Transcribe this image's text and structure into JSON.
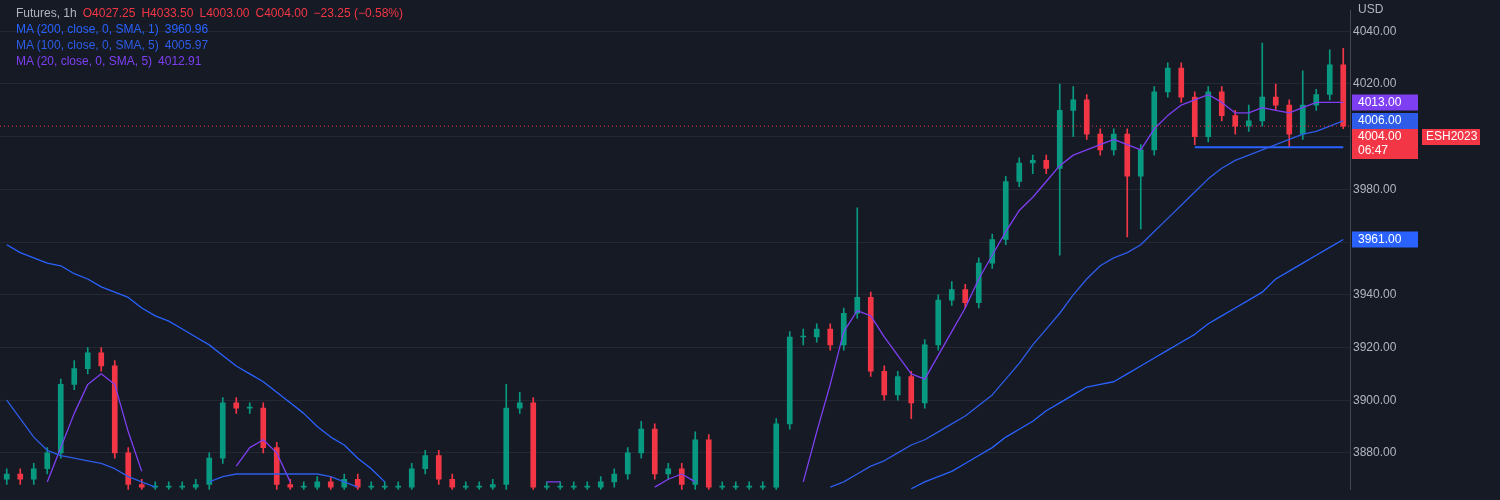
{
  "chart_data": {
    "type": "candlestick",
    "title": "Futures, 1h",
    "ylabel": "USD",
    "categories": [
      null,
      null,
      null,
      null,
      null,
      null,
      null,
      null,
      null,
      null,
      null,
      null,
      null,
      null,
      null,
      null,
      null,
      null,
      null,
      null,
      null,
      null,
      null,
      null,
      null,
      null,
      null,
      null,
      null,
      null,
      null,
      null,
      null,
      null,
      null,
      null,
      null,
      null,
      null,
      null,
      null,
      null,
      null,
      null,
      null,
      null,
      null,
      null,
      null,
      null,
      null,
      null,
      null,
      null,
      null,
      null,
      null,
      null,
      null,
      null,
      null,
      null,
      null,
      null,
      null,
      null,
      null,
      null,
      null,
      null,
      null,
      null,
      null,
      null,
      null,
      null,
      null,
      null,
      null,
      null,
      null,
      null,
      null,
      null,
      null,
      null,
      null,
      null,
      null,
      null,
      null,
      null,
      null,
      null,
      null,
      null,
      null,
      null,
      null,
      null
    ],
    "ohlc": [
      [
        3870,
        3874,
        3868,
        3872
      ],
      [
        3872,
        3874,
        3868,
        3870
      ],
      [
        3870,
        3876,
        3868,
        3874
      ],
      [
        3874,
        3882,
        3872,
        3880
      ],
      [
        3880,
        3908,
        3878,
        3906
      ],
      [
        3906,
        3915,
        3904,
        3912
      ],
      [
        3912,
        3920,
        3910,
        3918
      ],
      [
        3918,
        3920,
        3911,
        3913
      ],
      [
        3913,
        3915,
        3878,
        3880
      ],
      [
        3880,
        3882,
        3866,
        3868
      ],
      [
        3868,
        3870,
        3866,
        3867
      ],
      [
        3867,
        3869,
        3866,
        3867
      ],
      [
        3867,
        3869,
        3866,
        3867
      ],
      [
        3867,
        3869,
        3866,
        3867
      ],
      [
        3867,
        3870,
        3866,
        3868
      ],
      [
        3868,
        3880,
        3866,
        3878
      ],
      [
        3878,
        3901,
        3876,
        3899
      ],
      [
        3899,
        3901,
        3895,
        3897
      ],
      [
        3897,
        3899,
        3895,
        3897
      ],
      [
        3897,
        3899,
        3880,
        3882
      ],
      [
        3882,
        3884,
        3866,
        3868
      ],
      [
        3868,
        3870,
        3866,
        3867
      ],
      [
        3867,
        3869,
        3866,
        3867
      ],
      [
        3867,
        3871,
        3866,
        3869
      ],
      [
        3869,
        3871,
        3866,
        3867
      ],
      [
        3867,
        3872,
        3866,
        3870
      ],
      [
        3870,
        3872,
        3866,
        3867
      ],
      [
        3867,
        3869,
        3866,
        3867
      ],
      [
        3867,
        3869,
        3866,
        3867
      ],
      [
        3867,
        3869,
        3866,
        3867
      ],
      [
        3867,
        3876,
        3866,
        3874
      ],
      [
        3874,
        3881,
        3872,
        3879
      ],
      [
        3879,
        3881,
        3868,
        3870
      ],
      [
        3870,
        3872,
        3866,
        3867
      ],
      [
        3867,
        3869,
        3866,
        3867
      ],
      [
        3867,
        3869,
        3866,
        3867
      ],
      [
        3867,
        3870,
        3866,
        3868
      ],
      [
        3868,
        3906,
        3866,
        3897
      ],
      [
        3897,
        3903,
        3895,
        3899
      ],
      [
        3899,
        3901,
        3866,
        3867
      ],
      [
        3867,
        3869,
        3866,
        3867
      ],
      [
        3867,
        3869,
        3866,
        3867
      ],
      [
        3867,
        3869,
        3866,
        3867
      ],
      [
        3867,
        3869,
        3866,
        3867
      ],
      [
        3867,
        3871,
        3866,
        3869
      ],
      [
        3869,
        3874,
        3867,
        3872
      ],
      [
        3872,
        3882,
        3870,
        3880
      ],
      [
        3880,
        3892,
        3878,
        3889
      ],
      [
        3889,
        3891,
        3870,
        3872
      ],
      [
        3872,
        3876,
        3870,
        3874
      ],
      [
        3874,
        3876,
        3866,
        3868
      ],
      [
        3868,
        3888,
        3866,
        3885
      ],
      [
        3885,
        3887,
        3866,
        3867
      ],
      [
        3867,
        3869,
        3866,
        3867
      ],
      [
        3867,
        3869,
        3866,
        3867
      ],
      [
        3867,
        3869,
        3866,
        3867
      ],
      [
        3867,
        3869,
        3866,
        3867
      ],
      [
        3867,
        3893,
        3866,
        3891
      ],
      [
        3891,
        3926,
        3889,
        3924
      ],
      [
        3924,
        3927,
        3921,
        3924
      ],
      [
        3924,
        3929,
        3922,
        3927
      ],
      [
        3927,
        3929,
        3919,
        3921
      ],
      [
        3921,
        3935,
        3919,
        3933
      ],
      [
        3933,
        3973,
        3931,
        3939
      ],
      [
        3939,
        3941,
        3909,
        3911
      ],
      [
        3911,
        3913,
        3900,
        3902
      ],
      [
        3902,
        3911,
        3900,
        3909
      ],
      [
        3909,
        3911,
        3893,
        3899
      ],
      [
        3899,
        3923,
        3897,
        3921
      ],
      [
        3921,
        3940,
        3919,
        3938
      ],
      [
        3938,
        3945,
        3936,
        3942
      ],
      [
        3942,
        3944,
        3935,
        3937
      ],
      [
        3937,
        3954,
        3935,
        3952
      ],
      [
        3952,
        3963,
        3950,
        3961
      ],
      [
        3961,
        3985,
        3959,
        3983
      ],
      [
        3983,
        3992,
        3981,
        3990
      ],
      [
        3990,
        3993,
        3986,
        3991
      ],
      [
        3991,
        3993,
        3986,
        3988
      ],
      [
        3988,
        4020,
        3955,
        4010
      ],
      [
        4010,
        4019,
        4000,
        4014
      ],
      [
        4014,
        4016,
        3999,
        4001
      ],
      [
        4001,
        4003,
        3993,
        3995
      ],
      [
        3995,
        4003,
        3993,
        4001
      ],
      [
        4001,
        4003,
        3962,
        3985
      ],
      [
        3985,
        3997,
        3965,
        3995
      ],
      [
        3995,
        4019,
        3993,
        4017
      ],
      [
        4017,
        4028,
        4015,
        4026
      ],
      [
        4026,
        4028,
        4013,
        4015
      ],
      [
        4015,
        4017,
        3997,
        4000
      ],
      [
        4000,
        4019,
        3998,
        4017
      ],
      [
        4017,
        4019,
        4006,
        4008
      ],
      [
        4008,
        4010,
        4001,
        4004
      ],
      [
        4004,
        4012,
        4002,
        4006
      ],
      [
        4006,
        4035.5,
        4004,
        4015
      ],
      [
        4015,
        4020,
        4010,
        4012
      ],
      [
        4012,
        4014,
        3996,
        4001
      ],
      [
        4001,
        4025,
        3999,
        4012
      ],
      [
        4012,
        4018,
        4010,
        4016
      ],
      [
        4016,
        4033,
        4014,
        4027.25
      ],
      [
        4027.25,
        4033.5,
        4003,
        4004
      ]
    ],
    "colors": [
      "#089981",
      "#f23645",
      "#089981",
      "#089981",
      "#089981",
      "#089981",
      "#089981",
      "#f23645",
      "#f23645",
      "#f23645",
      "#f23645",
      "#089981",
      "#089981",
      "#089981",
      "#089981",
      "#089981",
      "#089981",
      "#f23645",
      "#089981",
      "#f23645",
      "#f23645",
      "#f23645",
      "#089981",
      "#089981",
      "#f23645",
      "#089981",
      "#f23645",
      "#089981",
      "#089981",
      "#089981",
      "#089981",
      "#089981",
      "#f23645",
      "#f23645",
      "#089981",
      "#089981",
      "#089981",
      "#089981",
      "#089981",
      "#f23645",
      "#089981",
      "#089981",
      "#089981",
      "#089981",
      "#089981",
      "#089981",
      "#089981",
      "#089981",
      "#f23645",
      "#089981",
      "#f23645",
      "#089981",
      "#f23645",
      "#089981",
      "#089981",
      "#089981",
      "#089981",
      "#089981",
      "#089981",
      "#089981",
      "#089981",
      "#f23645",
      "#089981",
      "#089981",
      "#f23645",
      "#f23645",
      "#089981",
      "#f23645",
      "#089981",
      "#089981",
      "#089981",
      "#f23645",
      "#089981",
      "#089981",
      "#089981",
      "#089981",
      "#089981",
      "#f23645",
      "#089981",
      "#089981",
      "#f23645",
      "#f23645",
      "#089981",
      "#f23645",
      "#089981",
      "#089981",
      "#089981",
      "#f23645",
      "#f23645",
      "#089981",
      "#f23645",
      "#f23645",
      "#089981",
      "#089981",
      "#f23645",
      "#f23645",
      "#089981",
      "#089981",
      "#089981",
      "#f23645"
    ],
    "series": [
      {
        "type": "line",
        "name": "MA (200, close, 0, SMA, 1)",
        "color": "#2962ff",
        "values": [
          3959,
          3956,
          3954,
          3952,
          3951,
          3948,
          3946,
          3943,
          3941,
          3939,
          3935,
          3932,
          3930,
          3927,
          3924,
          3921,
          3917,
          3913,
          3910,
          3907,
          3903,
          3899,
          3895,
          3890,
          3886,
          3883,
          3878,
          3874,
          3869,
          null,
          null,
          null,
          null,
          null,
          null,
          null,
          null,
          null,
          null,
          null,
          null,
          null,
          null,
          null,
          null,
          null,
          null,
          null,
          null,
          null,
          null,
          null,
          null,
          null,
          null,
          null,
          null,
          null,
          null,
          null,
          null,
          null,
          null,
          null,
          null,
          null,
          null,
          3866.4,
          3869,
          3871,
          3873,
          3876,
          3879,
          3882,
          3886,
          3889,
          3892,
          3896,
          3899,
          3902,
          3905,
          3906,
          3907,
          3910,
          3913,
          3916,
          3919,
          3922,
          3925,
          3929,
          3932,
          3935,
          3938,
          3941,
          3946,
          3949,
          3952,
          3955,
          3958,
          3961
        ],
        "value_labels": [
          null,
          null,
          null,
          null,
          null,
          null,
          null,
          null,
          null,
          null,
          null,
          null,
          null,
          null,
          null,
          null,
          null,
          null,
          null,
          null,
          null,
          null,
          null,
          null,
          null,
          null,
          null,
          null,
          null,
          null,
          null,
          null,
          null,
          null,
          null,
          null,
          null,
          null,
          null,
          null,
          null,
          null,
          null,
          null,
          null,
          null,
          null,
          null,
          null,
          null,
          null,
          null,
          null,
          null,
          null,
          null,
          null,
          null,
          null,
          null,
          null,
          null,
          null,
          null,
          null,
          null,
          null,
          null,
          null,
          null,
          null,
          null,
          null,
          null,
          null,
          null,
          null,
          null,
          null,
          null,
          null,
          null,
          null,
          null,
          null,
          null,
          null,
          null,
          null,
          null,
          null,
          null,
          null,
          null,
          null,
          null,
          null,
          null,
          null,
          "3961.00"
        ]
      },
      {
        "type": "line",
        "name": "MA (100, close, 0, SMA, 5)",
        "color": "#2e5ce8",
        "values": [
          3900,
          3893,
          3886,
          3881,
          3879,
          3878,
          3877,
          3876,
          3874,
          3871,
          3869,
          3867,
          null,
          null,
          null,
          3869,
          3871,
          3872,
          3872,
          3872,
          3872,
          3872,
          3872,
          3872,
          3871,
          3869,
          3867,
          null,
          null,
          null,
          null,
          null,
          null,
          null,
          null,
          null,
          null,
          null,
          null,
          null,
          null,
          null,
          null,
          null,
          null,
          null,
          null,
          null,
          null,
          null,
          null,
          null,
          null,
          null,
          null,
          null,
          null,
          null,
          null,
          null,
          null,
          3867,
          3869,
          3872,
          3875,
          3877,
          3880,
          3883,
          3885,
          3888,
          3891,
          3894,
          3898,
          3902,
          3908,
          3914,
          3921,
          3927,
          3933,
          3940,
          3946,
          3951,
          3954,
          3956,
          3959,
          3964,
          3969,
          3974,
          3979,
          3984,
          3988,
          3991,
          3993,
          3995,
          3997,
          3999,
          4001,
          4002,
          4004,
          4006
        ],
        "value_labels": [
          null,
          null,
          null,
          null,
          null,
          null,
          null,
          null,
          null,
          null,
          null,
          null,
          null,
          null,
          null,
          null,
          null,
          null,
          null,
          null,
          null,
          null,
          null,
          null,
          null,
          null,
          null,
          null,
          null,
          null,
          null,
          null,
          null,
          null,
          null,
          null,
          null,
          null,
          null,
          null,
          null,
          null,
          null,
          null,
          null,
          null,
          null,
          null,
          null,
          null,
          null,
          null,
          null,
          null,
          null,
          null,
          null,
          null,
          null,
          null,
          null,
          null,
          null,
          null,
          null,
          null,
          null,
          null,
          null,
          null,
          null,
          null,
          null,
          null,
          null,
          null,
          null,
          null,
          null,
          null,
          null,
          null,
          null,
          null,
          null,
          null,
          null,
          null,
          null,
          null,
          null,
          null,
          null,
          null,
          null,
          null,
          null,
          null,
          null,
          "4006.00"
        ]
      },
      {
        "type": "line",
        "name": "MA (20, close, 0, SMA, 5)",
        "color": "#7e3ff2",
        "values": [
          null,
          null,
          null,
          3869,
          3882,
          3895,
          3906,
          3910,
          3906,
          3888,
          3873,
          null,
          null,
          null,
          null,
          null,
          null,
          3875,
          3882,
          3885,
          3880,
          3869,
          null,
          null,
          null,
          null,
          null,
          null,
          null,
          null,
          null,
          null,
          null,
          null,
          null,
          null,
          null,
          null,
          null,
          null,
          3869,
          3869,
          null,
          null,
          null,
          null,
          null,
          null,
          3867,
          3870,
          3872,
          3869,
          null,
          null,
          null,
          null,
          null,
          null,
          null,
          3869,
          3888,
          3906,
          3926,
          3934,
          3932,
          3924,
          3917,
          3910,
          3908,
          3917,
          3926,
          3935,
          3946,
          3955,
          3964,
          3972,
          3977,
          3983,
          3989,
          3993,
          3995,
          3997,
          3999,
          3997,
          3995,
          4003,
          4008,
          4012,
          4014,
          4016,
          4013,
          4009,
          4009,
          4011,
          4010,
          4009,
          4011,
          4013,
          4013,
          4013
        ],
        "value_labels": [
          null,
          null,
          null,
          null,
          null,
          null,
          null,
          null,
          null,
          null,
          null,
          null,
          null,
          null,
          null,
          null,
          null,
          null,
          null,
          null,
          null,
          null,
          null,
          null,
          null,
          null,
          null,
          null,
          null,
          null,
          null,
          null,
          null,
          null,
          null,
          null,
          null,
          null,
          null,
          null,
          null,
          null,
          null,
          null,
          null,
          null,
          null,
          null,
          null,
          null,
          null,
          null,
          null,
          null,
          null,
          null,
          null,
          null,
          null,
          null,
          null,
          null,
          null,
          null,
          null,
          null,
          null,
          null,
          null,
          null,
          null,
          null,
          null,
          null,
          null,
          null,
          null,
          null,
          null,
          null,
          null,
          null,
          null,
          null,
          null,
          null,
          null,
          null,
          null,
          null,
          null,
          null,
          null,
          null,
          null,
          null,
          null,
          null,
          null,
          "4013.00"
        ]
      },
      {
        "type": "line",
        "color": "#2962ff",
        "values": [
          null,
          null,
          null,
          null,
          null,
          null,
          null,
          null,
          null,
          null,
          null,
          null,
          null,
          null,
          null,
          null,
          null,
          null,
          null,
          null,
          null,
          null,
          null,
          null,
          null,
          null,
          null,
          null,
          null,
          null,
          null,
          null,
          null,
          null,
          null,
          null,
          null,
          null,
          null,
          null,
          null,
          null,
          null,
          null,
          null,
          null,
          null,
          null,
          null,
          null,
          null,
          null,
          null,
          null,
          null,
          null,
          null,
          null,
          null,
          null,
          null,
          null,
          null,
          null,
          null,
          null,
          null,
          null,
          null,
          null,
          null,
          null,
          null,
          null,
          null,
          null,
          null,
          null,
          null,
          null,
          null,
          null,
          null,
          null,
          null,
          null,
          null,
          null,
          3996,
          3996,
          3996,
          3996,
          3996,
          3996,
          3996,
          3996,
          3996,
          3996,
          3996,
          3996
        ]
      }
    ],
    "ylim": [
      3866,
      4048
    ],
    "yticks": [
      {
        "value": 3880,
        "label": "3880.00"
      },
      {
        "value": 3900,
        "label": "3900.00"
      },
      {
        "value": 3920,
        "label": "3920.00"
      },
      {
        "value": 3940,
        "label": "3940.00"
      },
      {
        "value": 3960,
        "label": null
      },
      {
        "value": 3980,
        "label": "3980.00"
      },
      {
        "value": 4000,
        "label": null
      },
      {
        "value": 4020,
        "label": "4020.00"
      },
      {
        "value": 4040,
        "label": "4040.00"
      }
    ],
    "ref_lines": [
      {
        "axis": "y",
        "value": 4004,
        "label": "4004.00",
        "color": "#f23645",
        "line_style": "dotted"
      }
    ],
    "annotations": [
      "O4027.25",
      "H4033.50",
      "L4003.00",
      "C4004.00",
      "−23.25 (−0.58%)",
      "3960.96",
      "4005.97",
      "4012.91",
      "ESH2023",
      "06:47"
    ],
    "grid": "y",
    "legend": "top left",
    "marker": "none",
    "tick_labels": "y"
  }
}
